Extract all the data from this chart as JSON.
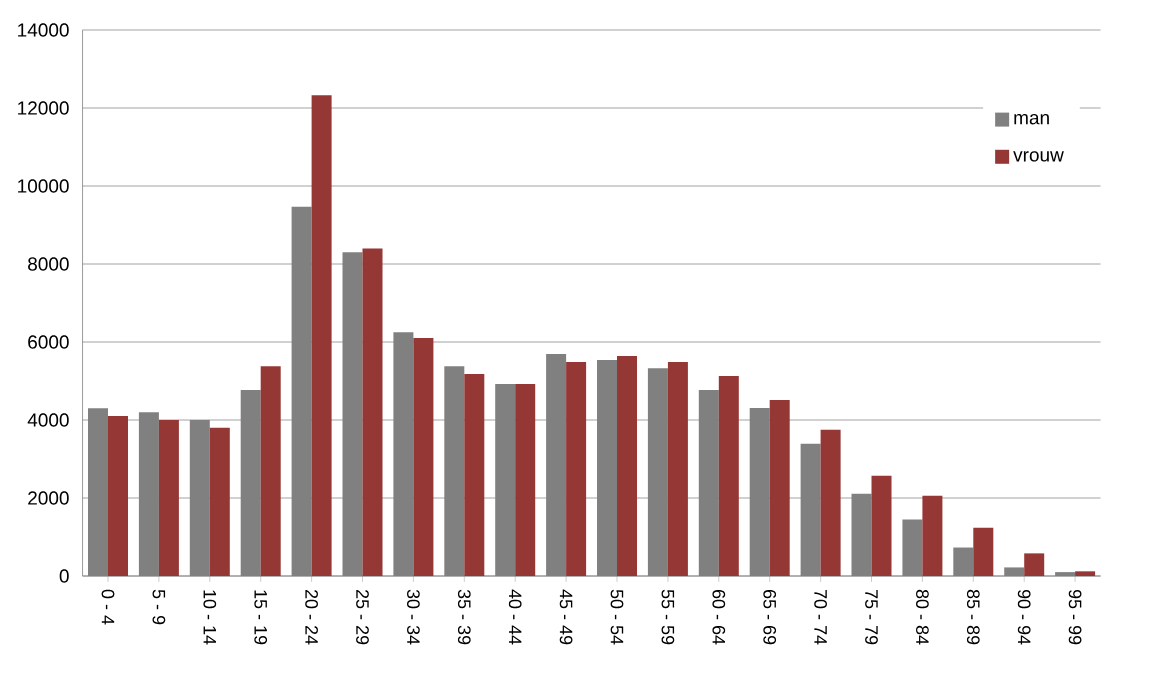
{
  "chart_data": {
    "type": "bar",
    "categories": [
      "0 - 4",
      "5 - 9",
      "10 - 14",
      "15 - 19",
      "20 - 24",
      "25 - 29",
      "30 - 34",
      "35 - 39",
      "40 - 44",
      "45 - 49",
      "50 - 54",
      "55 - 59",
      "60 - 64",
      "65 - 69",
      "70 - 74",
      "75 - 79",
      "80 - 84",
      "85 - 89",
      "90 - 94",
      "95 - 99"
    ],
    "series": [
      {
        "name": "man",
        "color": "#808080",
        "values": [
          4300,
          4200,
          4000,
          4770,
          9470,
          8300,
          6250,
          5380,
          4920,
          5690,
          5540,
          5330,
          4770,
          4310,
          3390,
          2110,
          1450,
          730,
          220,
          100
        ]
      },
      {
        "name": "vrouw",
        "color": "#953735",
        "values": [
          4100,
          4000,
          3800,
          5380,
          12330,
          8400,
          6100,
          5180,
          4920,
          5490,
          5640,
          5490,
          5130,
          4510,
          3750,
          2570,
          2060,
          1240,
          580,
          120
        ]
      }
    ],
    "ylim": [
      0,
      14000
    ],
    "yticks": [
      0,
      2000,
      4000,
      6000,
      8000,
      10000,
      12000,
      14000
    ],
    "grid": "y",
    "legend": "right"
  }
}
